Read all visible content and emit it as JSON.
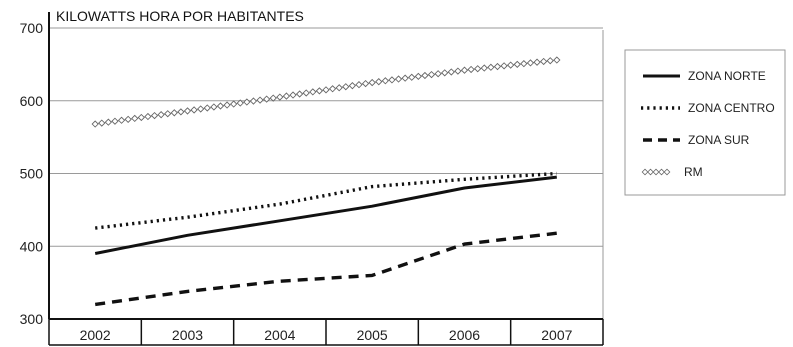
{
  "chart_data": {
    "type": "line",
    "title": "KILOWATTS HORA POR HABITANTES",
    "xlabel": "",
    "ylabel": "",
    "x": [
      "2002",
      "2003",
      "2004",
      "2005",
      "2006",
      "2007"
    ],
    "yticks": [
      "300",
      "400",
      "500",
      "600",
      "700"
    ],
    "ylim": [
      300,
      700
    ],
    "grid": true,
    "legend_position": "right",
    "series": [
      {
        "name": "ZONA NORTE",
        "style": "solid",
        "color": "#111111",
        "values": [
          390,
          415,
          435,
          455,
          480,
          495
        ]
      },
      {
        "name": "ZONA CENTRO",
        "style": "dotted",
        "color": "#111111",
        "values": [
          425,
          440,
          458,
          482,
          492,
          500
        ]
      },
      {
        "name": "ZONA SUR",
        "style": "dashed",
        "color": "#111111",
        "values": [
          320,
          338,
          352,
          360,
          403,
          418
        ]
      },
      {
        "name": "RM",
        "style": "diamond",
        "color": "#777777",
        "values": [
          568,
          586,
          605,
          625,
          642,
          656
        ]
      }
    ]
  }
}
